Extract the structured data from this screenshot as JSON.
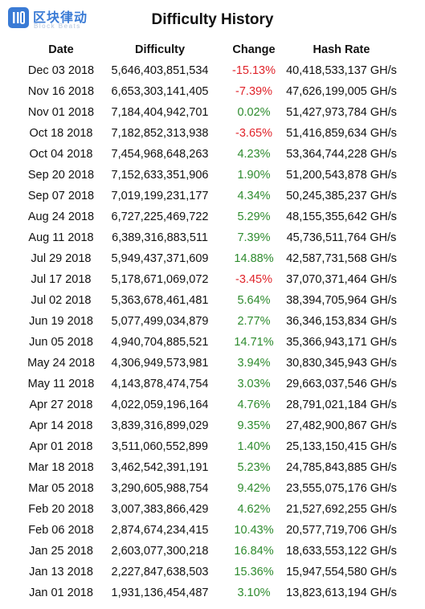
{
  "header": {
    "logo": "区块律动",
    "logo_sub": "Block Beats",
    "title": "Difficulty History"
  },
  "colors": {
    "up": "#2e8b2e",
    "down": "#e0242b"
  },
  "table": {
    "columns": [
      "Date",
      "Difficulty",
      "Change",
      "Hash Rate"
    ],
    "rows": [
      [
        "Dec 03 2018",
        "5,646,403,851,534",
        "-15.13%",
        "40,418,533,137 GH/s"
      ],
      [
        "Nov 16 2018",
        "6,653,303,141,405",
        "-7.39%",
        "47,626,199,005 GH/s"
      ],
      [
        "Nov 01 2018",
        "7,184,404,942,701",
        "0.02%",
        "51,427,973,784 GH/s"
      ],
      [
        "Oct 18 2018",
        "7,182,852,313,938",
        "-3.65%",
        "51,416,859,634 GH/s"
      ],
      [
        "Oct 04 2018",
        "7,454,968,648,263",
        "4.23%",
        "53,364,744,228 GH/s"
      ],
      [
        "Sep 20 2018",
        "7,152,633,351,906",
        "1.90%",
        "51,200,543,878 GH/s"
      ],
      [
        "Sep 07 2018",
        "7,019,199,231,177",
        "4.34%",
        "50,245,385,237 GH/s"
      ],
      [
        "Aug 24 2018",
        "6,727,225,469,722",
        "5.29%",
        "48,155,355,642 GH/s"
      ],
      [
        "Aug 11 2018",
        "6,389,316,883,511",
        "7.39%",
        "45,736,511,764 GH/s"
      ],
      [
        "Jul 29 2018",
        "5,949,437,371,609",
        "14.88%",
        "42,587,731,568 GH/s"
      ],
      [
        "Jul 17 2018",
        "5,178,671,069,072",
        "-3.45%",
        "37,070,371,464 GH/s"
      ],
      [
        "Jul 02 2018",
        "5,363,678,461,481",
        "5.64%",
        "38,394,705,964 GH/s"
      ],
      [
        "Jun 19 2018",
        "5,077,499,034,879",
        "2.77%",
        "36,346,153,834 GH/s"
      ],
      [
        "Jun 05 2018",
        "4,940,704,885,521",
        "14.71%",
        "35,366,943,171 GH/s"
      ],
      [
        "May 24 2018",
        "4,306,949,573,981",
        "3.94%",
        "30,830,345,943 GH/s"
      ],
      [
        "May 11 2018",
        "4,143,878,474,754",
        "3.03%",
        "29,663,037,546 GH/s"
      ],
      [
        "Apr 27 2018",
        "4,022,059,196,164",
        "4.76%",
        "28,791,021,184 GH/s"
      ],
      [
        "Apr 14 2018",
        "3,839,316,899,029",
        "9.35%",
        "27,482,900,867 GH/s"
      ],
      [
        "Apr 01 2018",
        "3,511,060,552,899",
        "1.40%",
        "25,133,150,415 GH/s"
      ],
      [
        "Mar 18 2018",
        "3,462,542,391,191",
        "5.23%",
        "24,785,843,885 GH/s"
      ],
      [
        "Mar 05 2018",
        "3,290,605,988,754",
        "9.42%",
        "23,555,075,176 GH/s"
      ],
      [
        "Feb 20 2018",
        "3,007,383,866,429",
        "4.62%",
        "21,527,692,255 GH/s"
      ],
      [
        "Feb 06 2018",
        "2,874,674,234,415",
        "10.43%",
        "20,577,719,706 GH/s"
      ],
      [
        "Jan 25 2018",
        "2,603,077,300,218",
        "16.84%",
        "18,633,553,122 GH/s"
      ],
      [
        "Jan 13 2018",
        "2,227,847,638,503",
        "15.36%",
        "15,947,554,580 GH/s"
      ],
      [
        "Jan 01 2018",
        "1,931,136,454,487",
        "3.10%",
        "13,823,613,194 GH/s"
      ]
    ]
  }
}
